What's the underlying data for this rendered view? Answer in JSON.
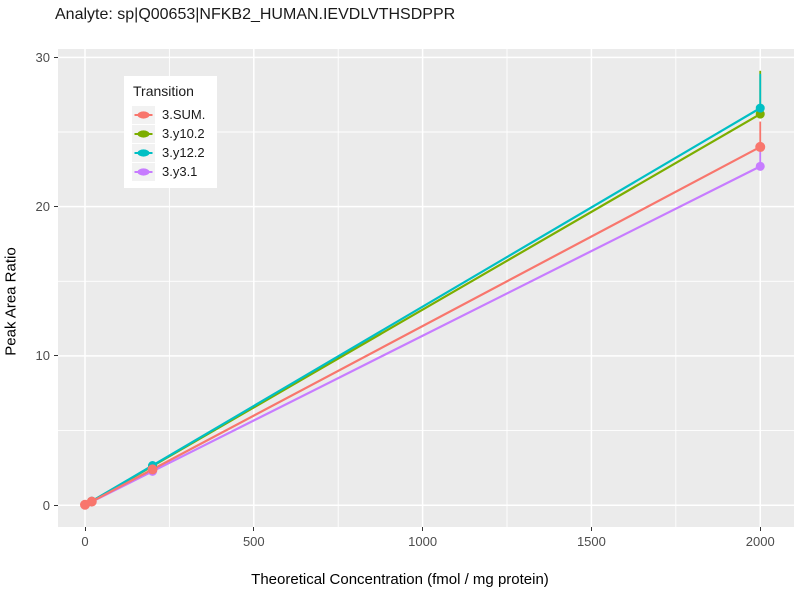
{
  "header": {
    "title": "Analyte: sp|Q00653|NFKB2_HUMAN.IEVDLVTHSDPPR"
  },
  "chart_data": {
    "type": "line",
    "title": "Analyte: sp|Q00653|NFKB2_HUMAN.IEVDLVTHSDPPR",
    "xlabel": "Theoretical Concentration (fmol / mg protein)",
    "ylabel": "Peak Area Ratio",
    "legend": {
      "title": "Transition",
      "position": "top-left-inside"
    },
    "grid": true,
    "panel_background": "#EBEBEB",
    "gridline_color": "#FFFFFF",
    "tick_color": "#333333",
    "tick_label_color": "#4D4D4D",
    "xlim": [
      -80,
      2100
    ],
    "ylim": [
      -1.46,
      30.56
    ],
    "x_ticks": [
      0,
      500,
      1000,
      1500,
      2000
    ],
    "y_ticks": [
      0,
      10,
      20,
      30
    ],
    "x_minor_ticks": [
      250,
      750,
      1250,
      1750
    ],
    "y_minor_ticks": [
      5,
      15,
      25
    ],
    "x": [
      0,
      20,
      200,
      2000
    ],
    "series": [
      {
        "name": "3.SUM.",
        "color": "#F8766D",
        "values": [
          0.03,
          0.24,
          2.4,
          24.0
        ],
        "error_high_at_2000": 25.7
      },
      {
        "name": "3.y10.2",
        "color": "#7CAE00",
        "values": [
          0.03,
          0.26,
          2.62,
          26.2
        ],
        "error_high_at_2000": 29.1
      },
      {
        "name": "3.y12.2",
        "color": "#00BFC4",
        "values": [
          0.03,
          0.27,
          2.66,
          26.6
        ],
        "error_high_at_2000": 28.9
      },
      {
        "name": "3.y3.1",
        "color": "#C77CFF",
        "values": [
          0.03,
          0.23,
          2.27,
          22.7
        ],
        "error_high_at_2000": 23.8
      }
    ]
  }
}
